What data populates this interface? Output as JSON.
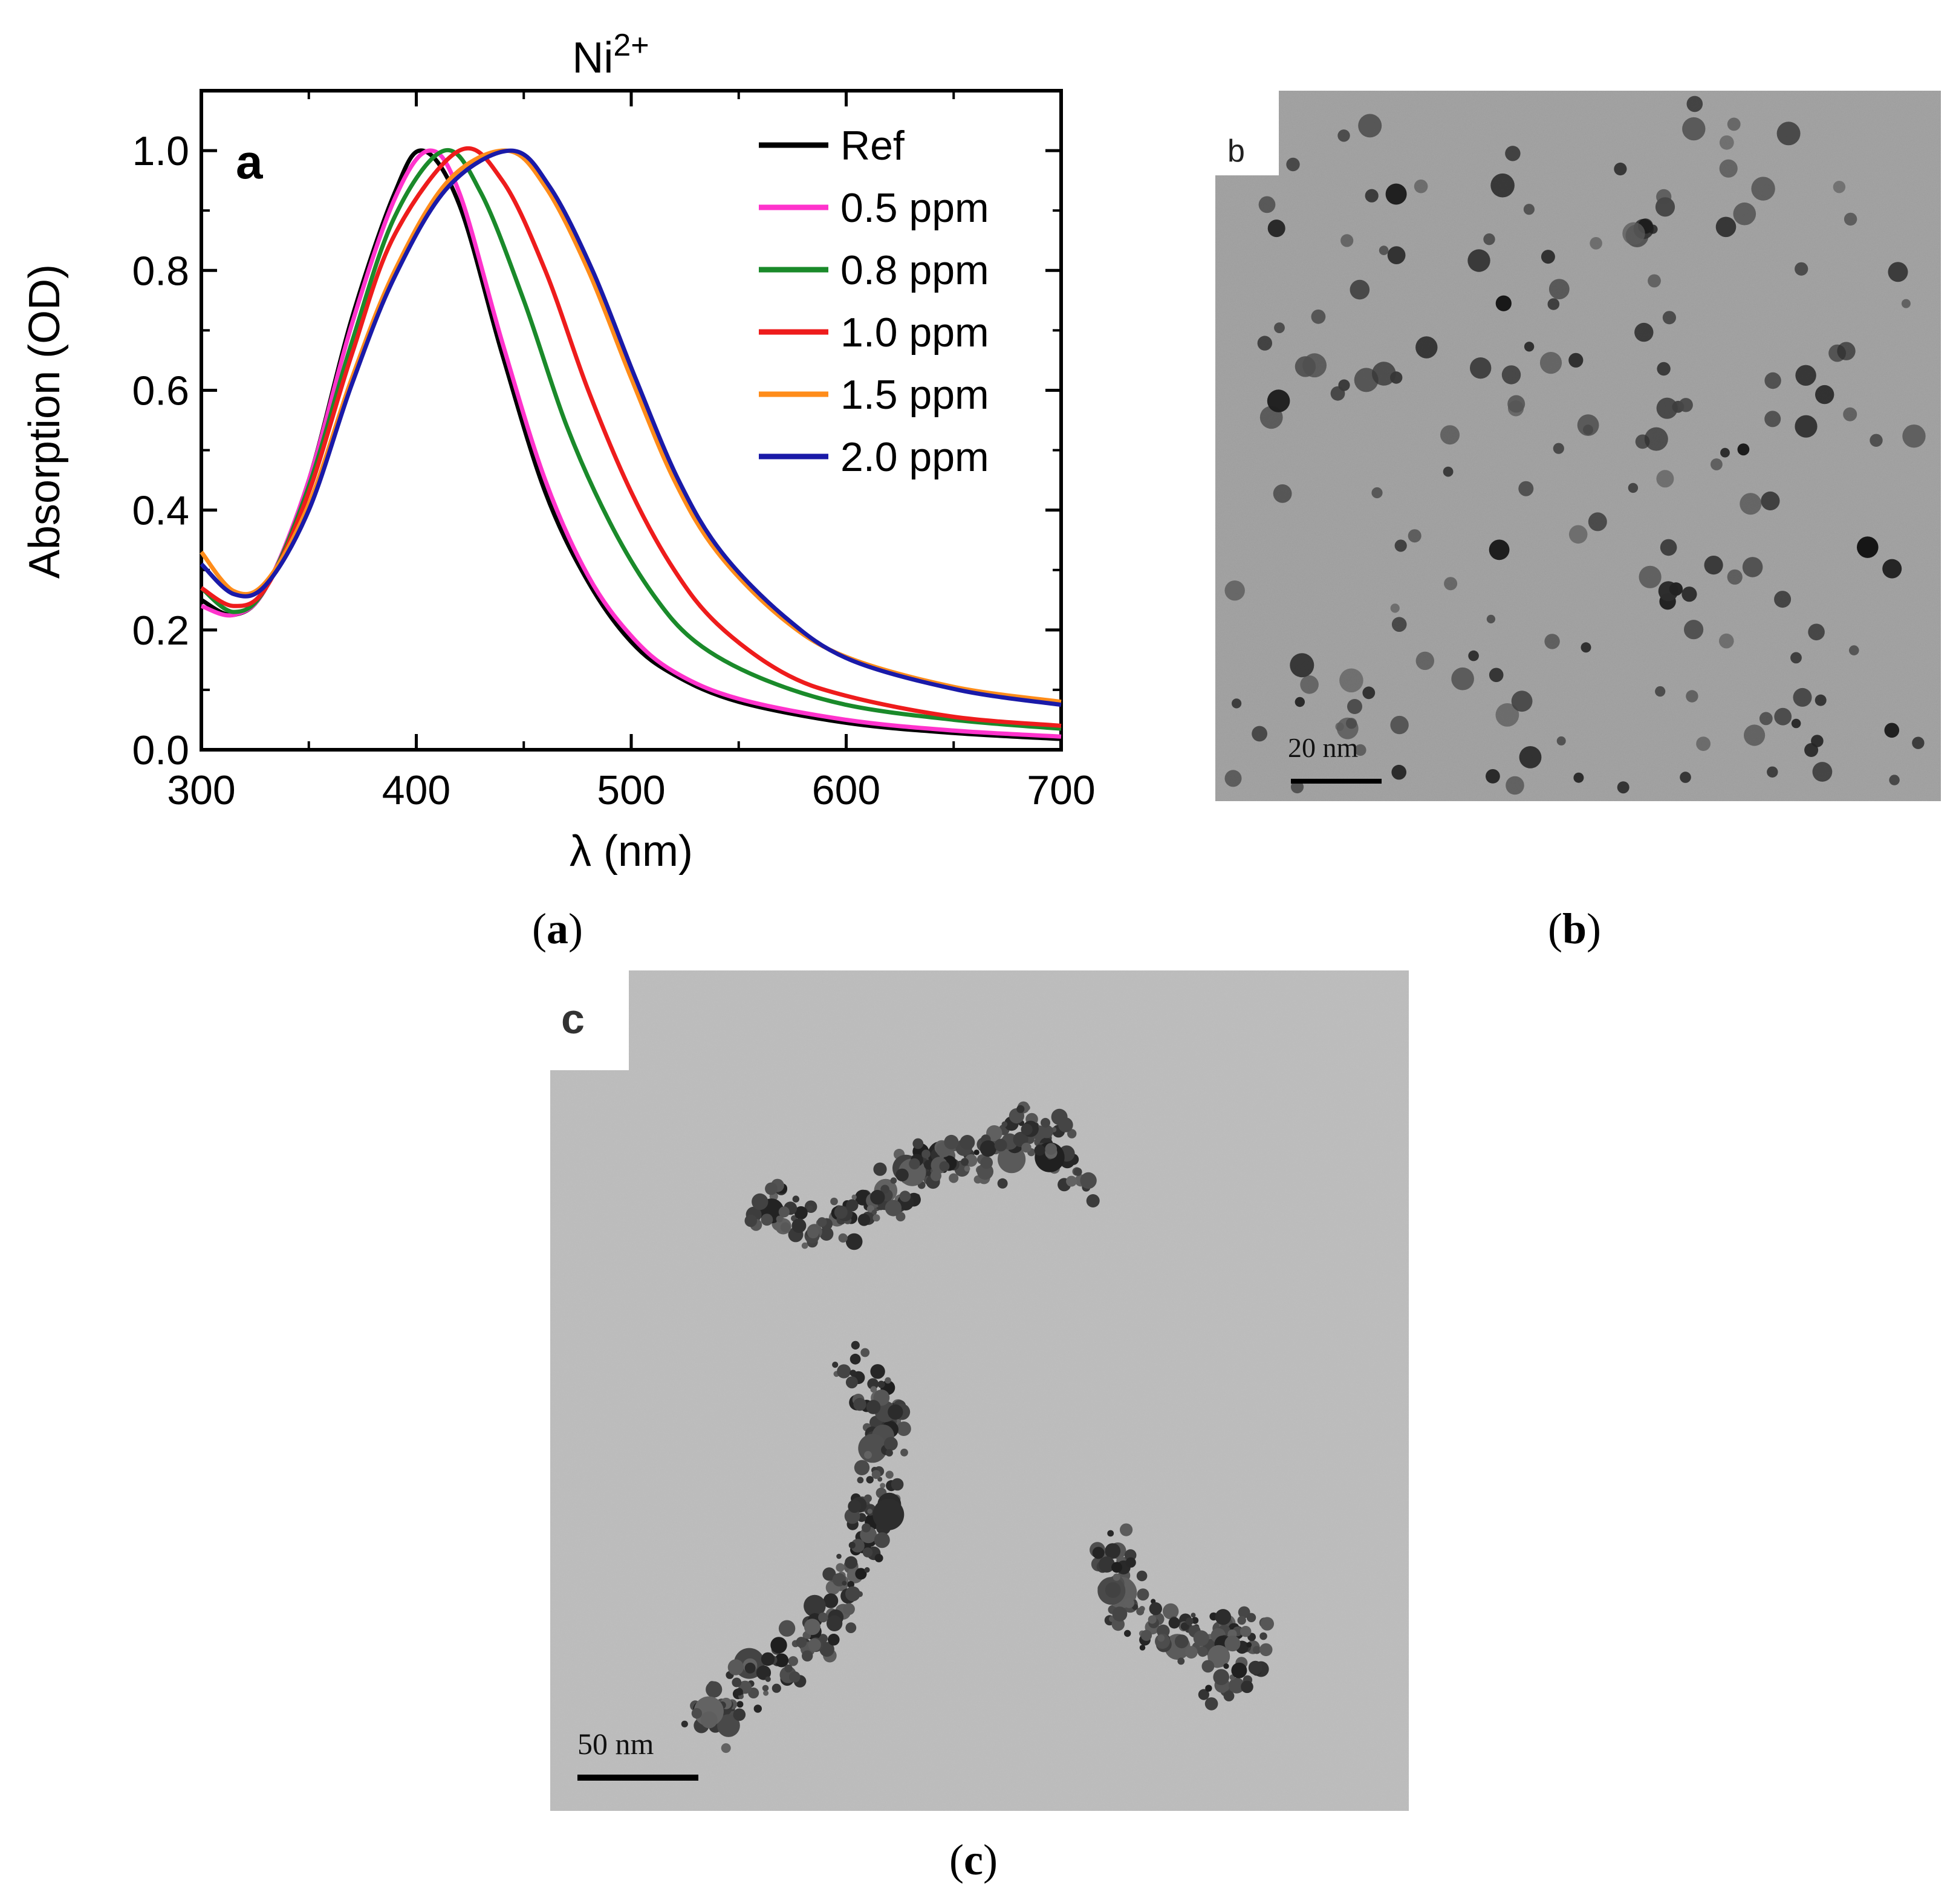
{
  "chart_data": {
    "type": "line",
    "title": "Ni",
    "title_sup": "2+",
    "panel_label": "a",
    "xlabel": "λ (nm)",
    "ylabel": "Absorption (OD)",
    "xlim": [
      300,
      700
    ],
    "ylim": [
      0,
      1.1
    ],
    "xticks": [
      "300",
      "400",
      "500",
      "600",
      "700"
    ],
    "yticks": [
      "0.0",
      "0.2",
      "0.4",
      "0.6",
      "0.8",
      "1.0"
    ],
    "legend_position": "top-right",
    "series": [
      {
        "name": "Ref",
        "color": "#000000",
        "x": [
          300,
          315,
          330,
          350,
          370,
          390,
          403,
          420,
          440,
          460,
          480,
          500,
          520,
          550,
          600,
          650,
          700
        ],
        "y": [
          0.25,
          0.225,
          0.27,
          0.45,
          0.72,
          0.93,
          1.0,
          0.91,
          0.66,
          0.43,
          0.28,
          0.18,
          0.125,
          0.08,
          0.045,
          0.028,
          0.018
        ]
      },
      {
        "name": "0.5 ppm",
        "color": "#ff33cc",
        "x": [
          300,
          315,
          330,
          350,
          370,
          390,
          406,
          420,
          440,
          460,
          480,
          500,
          520,
          550,
          600,
          650,
          700
        ],
        "y": [
          0.24,
          0.225,
          0.27,
          0.45,
          0.71,
          0.92,
          1.0,
          0.93,
          0.68,
          0.45,
          0.29,
          0.19,
          0.13,
          0.085,
          0.05,
          0.032,
          0.022
        ]
      },
      {
        "name": "0.8 ppm",
        "color": "#1a8a2a",
        "x": [
          300,
          315,
          330,
          350,
          370,
          390,
          413,
          430,
          450,
          470,
          490,
          510,
          530,
          560,
          600,
          650,
          700
        ],
        "y": [
          0.27,
          0.23,
          0.27,
          0.44,
          0.68,
          0.89,
          1.0,
          0.93,
          0.75,
          0.54,
          0.38,
          0.26,
          0.18,
          0.12,
          0.075,
          0.05,
          0.035
        ]
      },
      {
        "name": "1.0 ppm",
        "color": "#ee1c1c",
        "x": [
          300,
          315,
          330,
          350,
          370,
          390,
          420,
          440,
          460,
          480,
          500,
          520,
          540,
          570,
          600,
          650,
          700
        ],
        "y": [
          0.27,
          0.24,
          0.27,
          0.43,
          0.66,
          0.86,
          1.0,
          0.95,
          0.8,
          0.6,
          0.43,
          0.3,
          0.21,
          0.13,
          0.09,
          0.055,
          0.04
        ]
      },
      {
        "name": "1.5 ppm",
        "color": "#ff8c1a",
        "x": [
          300,
          315,
          330,
          350,
          370,
          390,
          415,
          442,
          460,
          480,
          500,
          520,
          540,
          570,
          600,
          650,
          700
        ],
        "y": [
          0.33,
          0.265,
          0.28,
          0.41,
          0.62,
          0.8,
          0.95,
          1.0,
          0.94,
          0.8,
          0.62,
          0.45,
          0.33,
          0.22,
          0.155,
          0.105,
          0.08
        ]
      },
      {
        "name": "2.0 ppm",
        "color": "#1a1aa8",
        "x": [
          300,
          315,
          330,
          350,
          370,
          390,
          415,
          444,
          462,
          482,
          502,
          522,
          542,
          572,
          602,
          652,
          700
        ],
        "y": [
          0.31,
          0.26,
          0.275,
          0.4,
          0.61,
          0.79,
          0.94,
          1.0,
          0.94,
          0.8,
          0.62,
          0.45,
          0.33,
          0.22,
          0.15,
          0.1,
          0.075
        ]
      }
    ]
  },
  "captions": {
    "a": "a",
    "b": "b",
    "c": "c"
  },
  "tem_b": {
    "panel_label": "b",
    "scale_label": "20 nm"
  },
  "tem_c": {
    "panel_label": "c",
    "scale_label": "50 nm"
  }
}
